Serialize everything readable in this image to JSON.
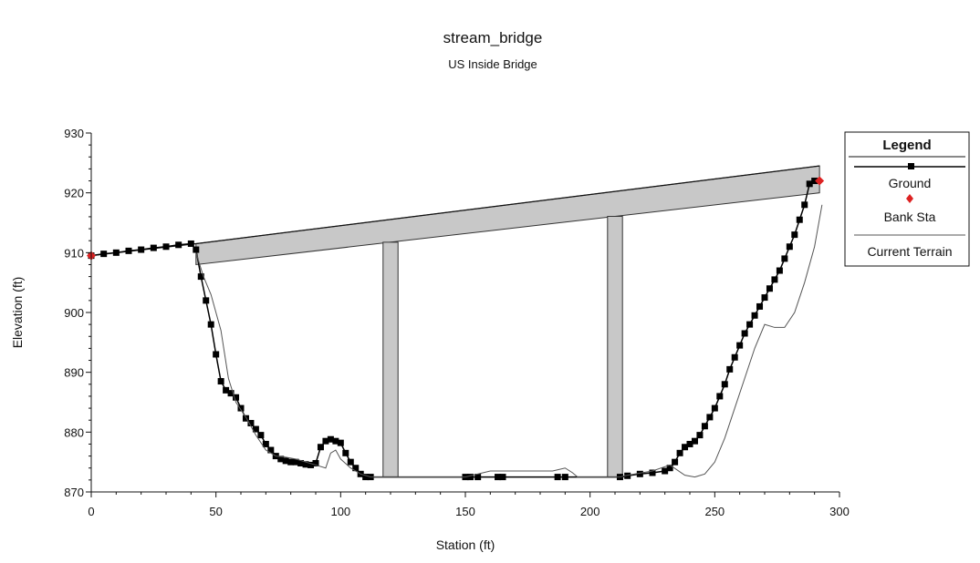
{
  "chart_data": {
    "type": "line",
    "title": "stream_bridge",
    "subtitle": "US Inside Bridge",
    "xlabel": "Station (ft)",
    "ylabel": "Elevation (ft)",
    "xlim": [
      0,
      300
    ],
    "ylim": [
      870,
      930
    ],
    "xticks": [
      "0",
      "50",
      "100",
      "150",
      "200",
      "250",
      "300"
    ],
    "yticks": [
      "870",
      "880",
      "890",
      "900",
      "910",
      "920",
      "930"
    ],
    "legend": {
      "title": "Legend",
      "position": "right",
      "items": [
        {
          "label": "Ground",
          "marker": "square",
          "color": "#000000"
        },
        {
          "label": "Bank Sta",
          "marker": "diamond",
          "color": "#dd2222"
        },
        {
          "label": "Current Terrain",
          "marker": "line",
          "color": "#555555"
        }
      ]
    },
    "series": [
      {
        "name": "Ground",
        "color": "#000000",
        "x": [
          0,
          5,
          10,
          15,
          20,
          25,
          30,
          35,
          40,
          42,
          44,
          46,
          48,
          50,
          52,
          54,
          56,
          58,
          60,
          62,
          64,
          66,
          68,
          70,
          72,
          74,
          76,
          78,
          80,
          82,
          84,
          86,
          88,
          90,
          92,
          94,
          96,
          98,
          100,
          102,
          104,
          106,
          108,
          110,
          112,
          150,
          152,
          155,
          163,
          165,
          187,
          190,
          212,
          215,
          220,
          225,
          230,
          232,
          234,
          236,
          238,
          240,
          242,
          244,
          246,
          248,
          250,
          252,
          254,
          256,
          258,
          260,
          262,
          264,
          266,
          268,
          270,
          272,
          274,
          276,
          278,
          280,
          282,
          284,
          286,
          288,
          290
        ],
        "y": [
          909.5,
          909.8,
          910.0,
          910.3,
          910.5,
          910.8,
          911.0,
          911.3,
          911.5,
          910.5,
          906,
          902,
          898,
          893,
          888.5,
          887,
          886.5,
          885.8,
          884,
          882.3,
          881.5,
          880.5,
          879.5,
          878,
          877,
          876,
          875.5,
          875.2,
          875,
          875,
          874.8,
          874.6,
          874.5,
          874.8,
          877.5,
          878.5,
          878.8,
          878.5,
          878.2,
          876.5,
          875,
          874,
          873,
          872.5,
          872.5,
          872.5,
          872.5,
          872.5,
          872.5,
          872.5,
          872.5,
          872.5,
          872.5,
          872.7,
          873,
          873.2,
          873.5,
          874,
          875,
          876.5,
          877.5,
          878,
          878.5,
          879.5,
          881,
          882.5,
          884,
          886,
          888,
          890.5,
          892.5,
          894.5,
          896.5,
          898,
          899.5,
          901,
          902.5,
          904,
          905.5,
          907,
          909,
          911,
          913,
          915.5,
          918,
          921.5,
          922
        ]
      },
      {
        "name": "Current Terrain",
        "color": "#555555",
        "x": [
          42,
          45,
          48,
          50,
          52,
          55,
          58,
          62,
          66,
          70,
          74,
          78,
          82,
          86,
          90,
          94,
          96,
          98,
          100,
          104,
          108,
          112,
          150,
          160,
          185,
          190,
          193,
          195,
          212,
          215,
          225,
          232,
          238,
          242,
          246,
          250,
          254,
          258,
          262,
          266,
          270,
          274,
          278,
          282,
          286,
          290,
          293
        ],
        "y": [
          910,
          906,
          903,
          900,
          897,
          889,
          885,
          882.5,
          879.5,
          877,
          876,
          875.8,
          875.5,
          875,
          874.5,
          874,
          876.5,
          877,
          875.5,
          874,
          873,
          872.5,
          872.5,
          873.5,
          873.5,
          874,
          873.2,
          872.5,
          872.5,
          872.8,
          873.5,
          874.5,
          872.8,
          872.5,
          873,
          875,
          879,
          884,
          889,
          894,
          898,
          897.5,
          897.5,
          900,
          905,
          911,
          918
        ]
      }
    ],
    "bank_stations": [
      {
        "x": 0,
        "y": 909.5
      },
      {
        "x": 292,
        "y": 922
      }
    ],
    "bridge": {
      "deck_top": [
        [
          0,
          909.5
        ],
        [
          42,
          911.5
        ],
        [
          292,
          924.5
        ]
      ],
      "deck_bottom": [
        [
          42,
          908
        ],
        [
          292,
          920
        ]
      ],
      "piers": [
        {
          "x_left": 117,
          "x_right": 123,
          "y_bottom": 872.5
        },
        {
          "x_left": 207,
          "x_right": 213,
          "y_bottom": 872.5
        }
      ],
      "low_chord_floor": [
        [
          112,
          872.5
        ],
        [
          215,
          872.5
        ]
      ]
    }
  }
}
